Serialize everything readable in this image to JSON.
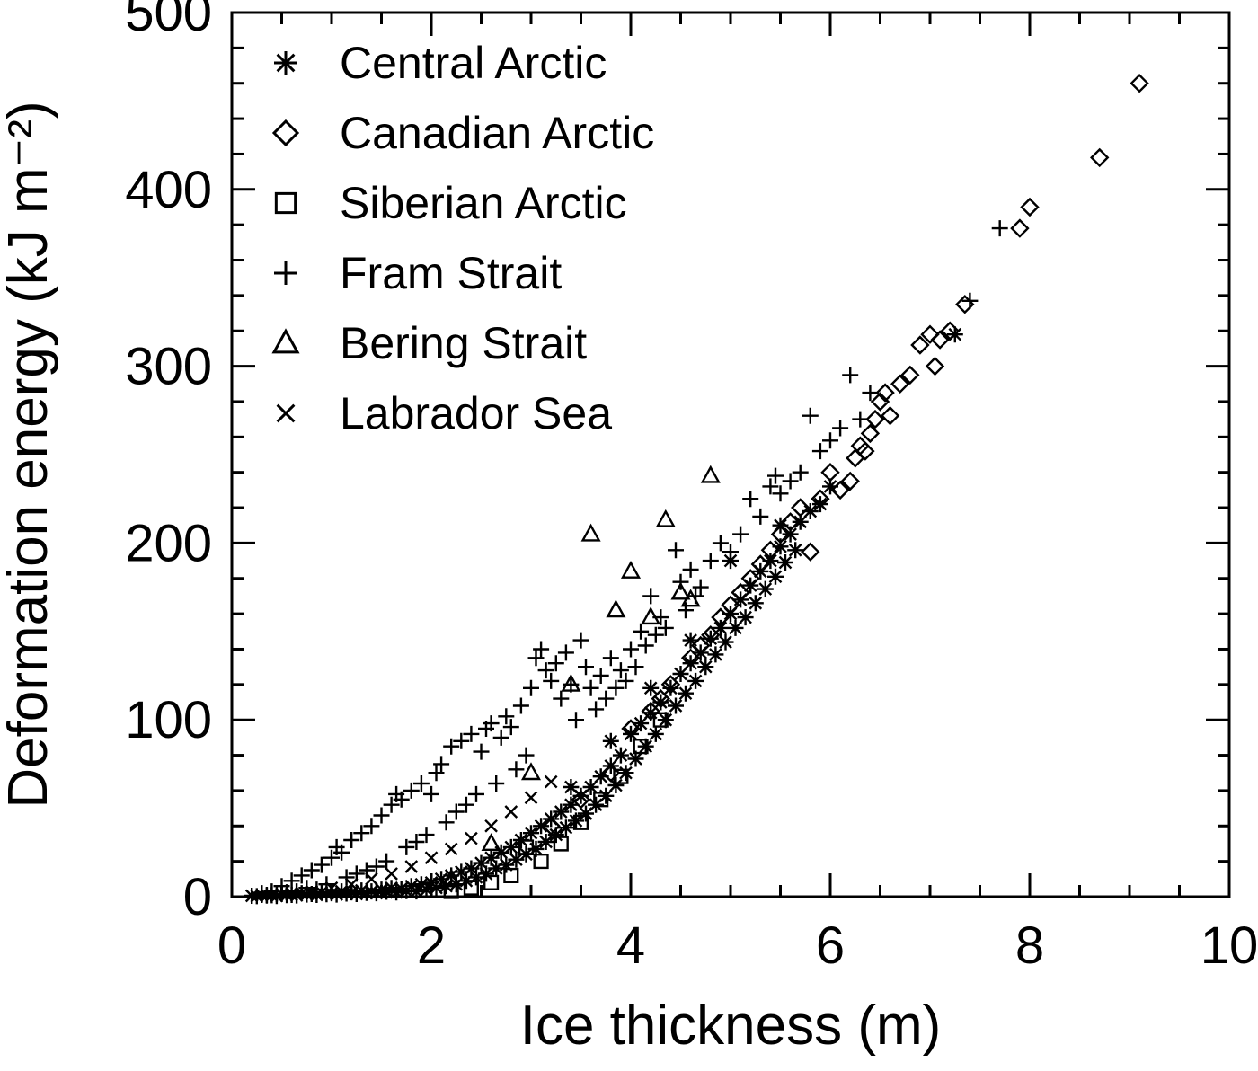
{
  "figure": {
    "background": "#ffffff",
    "foreground": "#000000"
  },
  "chart_data": {
    "type": "scatter",
    "title": "",
    "xlabel": "Ice thickness (m)",
    "ylabel": "Deformation energy (kJ m⁻²)",
    "xlim": [
      0,
      10
    ],
    "ylim": [
      0,
      500
    ],
    "x_ticks": [
      0,
      2,
      4,
      6,
      8,
      10
    ],
    "y_ticks": [
      0,
      100,
      200,
      300,
      400,
      500
    ],
    "x_minor_interval": 0.5,
    "y_minor_interval": 20,
    "grid": false,
    "legend_position": "top-left-inside",
    "series": [
      {
        "name": "Central Arctic",
        "marker": "asterisk",
        "color": "#000000",
        "points": [
          [
            0.2,
            0.5
          ],
          [
            0.25,
            0.3
          ],
          [
            0.3,
            1
          ],
          [
            0.35,
            0.6
          ],
          [
            0.4,
            0.8
          ],
          [
            0.45,
            0.4
          ],
          [
            0.5,
            1.5
          ],
          [
            0.55,
            0.9
          ],
          [
            0.6,
            1
          ],
          [
            0.65,
            0.7
          ],
          [
            0.7,
            2
          ],
          [
            0.75,
            1.2
          ],
          [
            0.8,
            1.5
          ],
          [
            0.85,
            1
          ],
          [
            0.9,
            2.5
          ],
          [
            0.95,
            1.4
          ],
          [
            1,
            2
          ],
          [
            1.05,
            1.2
          ],
          [
            1.1,
            3
          ],
          [
            1.15,
            1.8
          ],
          [
            1.2,
            2.5
          ],
          [
            1.25,
            1.5
          ],
          [
            1.3,
            3.5
          ],
          [
            1.35,
            2.2
          ],
          [
            1.4,
            3
          ],
          [
            1.45,
            2
          ],
          [
            1.5,
            4
          ],
          [
            1.55,
            2.8
          ],
          [
            1.6,
            5
          ],
          [
            1.65,
            2.4
          ],
          [
            1.7,
            4.5
          ],
          [
            1.75,
            3.2
          ],
          [
            1.8,
            6
          ],
          [
            1.85,
            3
          ],
          [
            1.9,
            7
          ],
          [
            1.95,
            4
          ],
          [
            2,
            8
          ],
          [
            2.05,
            5
          ],
          [
            2.1,
            10
          ],
          [
            2.15,
            6
          ],
          [
            2.2,
            12
          ],
          [
            2.25,
            7
          ],
          [
            2.3,
            14
          ],
          [
            2.35,
            9
          ],
          [
            2.4,
            16
          ],
          [
            2.45,
            11
          ],
          [
            2.5,
            19
          ],
          [
            2.55,
            13
          ],
          [
            2.6,
            22
          ],
          [
            2.65,
            16
          ],
          [
            2.7,
            25
          ],
          [
            2.75,
            18
          ],
          [
            2.8,
            28
          ],
          [
            2.85,
            21
          ],
          [
            2.9,
            32
          ],
          [
            2.95,
            24
          ],
          [
            3,
            36
          ],
          [
            3.05,
            27
          ],
          [
            3.1,
            40
          ],
          [
            3.15,
            31
          ],
          [
            3.2,
            44
          ],
          [
            3.25,
            35
          ],
          [
            3.3,
            48
          ],
          [
            3.35,
            39
          ],
          [
            3.4,
            52
          ],
          [
            3.45,
            43
          ],
          [
            3.5,
            57
          ],
          [
            3.55,
            47
          ],
          [
            3.6,
            62
          ],
          [
            3.65,
            52
          ],
          [
            3.7,
            68
          ],
          [
            3.75,
            57
          ],
          [
            3.8,
            74
          ],
          [
            3.85,
            63
          ],
          [
            3.9,
            80
          ],
          [
            3.95,
            70
          ],
          [
            4,
            92
          ],
          [
            4.05,
            78
          ],
          [
            4.1,
            98
          ],
          [
            4.15,
            85
          ],
          [
            4.2,
            104
          ],
          [
            4.25,
            92
          ],
          [
            4.3,
            110
          ],
          [
            4.35,
            100
          ],
          [
            4.4,
            118
          ],
          [
            4.45,
            108
          ],
          [
            4.5,
            126
          ],
          [
            4.55,
            115
          ],
          [
            4.6,
            132
          ],
          [
            4.65,
            122
          ],
          [
            4.7,
            138
          ],
          [
            4.75,
            130
          ],
          [
            4.8,
            146
          ],
          [
            4.85,
            137
          ],
          [
            4.9,
            152
          ],
          [
            4.95,
            144
          ],
          [
            5,
            160
          ],
          [
            5.05,
            152
          ],
          [
            5.1,
            168
          ],
          [
            5.15,
            158
          ],
          [
            5.2,
            176
          ],
          [
            5.25,
            166
          ],
          [
            5.3,
            184
          ],
          [
            5.35,
            174
          ],
          [
            5.4,
            190
          ],
          [
            5.45,
            181
          ],
          [
            5.5,
            198
          ],
          [
            5.55,
            189
          ],
          [
            5.6,
            205
          ],
          [
            5.65,
            196
          ],
          [
            5.7,
            212
          ],
          [
            5.8,
            218
          ],
          [
            5.9,
            222
          ],
          [
            6,
            232
          ],
          [
            5,
            190
          ],
          [
            4.6,
            145
          ],
          [
            4.2,
            118
          ],
          [
            3.8,
            88
          ],
          [
            3.4,
            62
          ],
          [
            5.5,
            210
          ],
          [
            7.25,
            318
          ]
        ]
      },
      {
        "name": "Canadian Arctic",
        "marker": "diamond",
        "color": "#000000",
        "points": [
          [
            3.2,
            40
          ],
          [
            3.5,
            55
          ],
          [
            3.8,
            70
          ],
          [
            4,
            95
          ],
          [
            4.2,
            105
          ],
          [
            4.3,
            112
          ],
          [
            4.4,
            120
          ],
          [
            4.6,
            135
          ],
          [
            4.7,
            142
          ],
          [
            4.8,
            148
          ],
          [
            4.9,
            158
          ],
          [
            5,
            165
          ],
          [
            5.1,
            172
          ],
          [
            5.2,
            180
          ],
          [
            5.3,
            188
          ],
          [
            5.4,
            196
          ],
          [
            5.5,
            205
          ],
          [
            5.6,
            212
          ],
          [
            5.7,
            220
          ],
          [
            5.8,
            195
          ],
          [
            5.9,
            225
          ],
          [
            6,
            240
          ],
          [
            6.1,
            230
          ],
          [
            6.2,
            235
          ],
          [
            6.25,
            248
          ],
          [
            6.3,
            255
          ],
          [
            6.35,
            252
          ],
          [
            6.4,
            262
          ],
          [
            6.45,
            270
          ],
          [
            6.5,
            280
          ],
          [
            6.55,
            285
          ],
          [
            6.6,
            272
          ],
          [
            6.7,
            290
          ],
          [
            6.8,
            295
          ],
          [
            6.9,
            312
          ],
          [
            7,
            318
          ],
          [
            7.05,
            300
          ],
          [
            7.1,
            315
          ],
          [
            7.2,
            320
          ],
          [
            7.35,
            335
          ],
          [
            7.9,
            378
          ],
          [
            8,
            390
          ],
          [
            8.7,
            418
          ],
          [
            9.1,
            460
          ]
        ]
      },
      {
        "name": "Siberian Arctic",
        "marker": "square",
        "color": "#000000",
        "points": [
          [
            2.2,
            3
          ],
          [
            2.4,
            5
          ],
          [
            2.6,
            8
          ],
          [
            2.8,
            12
          ],
          [
            2.95,
            28
          ],
          [
            3.1,
            20
          ],
          [
            3.3,
            30
          ],
          [
            3.5,
            42
          ],
          [
            3.7,
            55
          ],
          [
            3.9,
            68
          ],
          [
            4.1,
            85
          ],
          [
            4.3,
            100
          ]
        ]
      },
      {
        "name": "Fram Strait",
        "marker": "plus",
        "color": "#000000",
        "points": [
          [
            0.3,
            2
          ],
          [
            0.35,
            1
          ],
          [
            0.4,
            3
          ],
          [
            0.45,
            1.5
          ],
          [
            0.5,
            6
          ],
          [
            0.55,
            2.5
          ],
          [
            0.6,
            9
          ],
          [
            0.65,
            3
          ],
          [
            0.7,
            12
          ],
          [
            0.75,
            5
          ],
          [
            0.8,
            15
          ],
          [
            0.85,
            4
          ],
          [
            0.9,
            18
          ],
          [
            0.95,
            7
          ],
          [
            1,
            22
          ],
          [
            1.05,
            28
          ],
          [
            1.1,
            25
          ],
          [
            1.15,
            11
          ],
          [
            1.2,
            32
          ],
          [
            1.25,
            13
          ],
          [
            1.3,
            36
          ],
          [
            1.35,
            15
          ],
          [
            1.4,
            40
          ],
          [
            1.45,
            17
          ],
          [
            1.5,
            46
          ],
          [
            1.55,
            20
          ],
          [
            1.6,
            52
          ],
          [
            1.65,
            58
          ],
          [
            1.7,
            55
          ],
          [
            1.75,
            28
          ],
          [
            1.8,
            60
          ],
          [
            1.85,
            31
          ],
          [
            1.9,
            64
          ],
          [
            1.95,
            35
          ],
          [
            2,
            58
          ],
          [
            2.05,
            70
          ],
          [
            2.1,
            75
          ],
          [
            2.15,
            42
          ],
          [
            2.2,
            85
          ],
          [
            2.25,
            48
          ],
          [
            2.3,
            88
          ],
          [
            2.35,
            52
          ],
          [
            2.4,
            92
          ],
          [
            2.45,
            58
          ],
          [
            2.5,
            82
          ],
          [
            2.55,
            95
          ],
          [
            2.6,
            98
          ],
          [
            2.65,
            64
          ],
          [
            2.7,
            90
          ],
          [
            2.75,
            102
          ],
          [
            2.8,
            96
          ],
          [
            2.85,
            72
          ],
          [
            2.9,
            108
          ],
          [
            2.95,
            80
          ],
          [
            3,
            118
          ],
          [
            3.05,
            135
          ],
          [
            3.1,
            140
          ],
          [
            3.15,
            128
          ],
          [
            3.2,
            122
          ],
          [
            3.25,
            132
          ],
          [
            3.3,
            112
          ],
          [
            3.35,
            138
          ],
          [
            3.4,
            120
          ],
          [
            3.45,
            100
          ],
          [
            3.5,
            145
          ],
          [
            3.55,
            130
          ],
          [
            3.6,
            118
          ],
          [
            3.65,
            106
          ],
          [
            3.7,
            125
          ],
          [
            3.75,
            112
          ],
          [
            3.8,
            135
          ],
          [
            3.85,
            118
          ],
          [
            3.9,
            128
          ],
          [
            3.95,
            122
          ],
          [
            4,
            140
          ],
          [
            4.05,
            130
          ],
          [
            4.1,
            150
          ],
          [
            4.15,
            142
          ],
          [
            4.2,
            170
          ],
          [
            4.25,
            148
          ],
          [
            4.3,
            158
          ],
          [
            4.35,
            152
          ],
          [
            4.45,
            196
          ],
          [
            4.5,
            178
          ],
          [
            4.55,
            162
          ],
          [
            4.6,
            185
          ],
          [
            4.65,
            170
          ],
          [
            4.7,
            175
          ],
          [
            4.8,
            190
          ],
          [
            4.9,
            200
          ],
          [
            5,
            195
          ],
          [
            5.1,
            205
          ],
          [
            5.2,
            225
          ],
          [
            5.3,
            215
          ],
          [
            5.4,
            232
          ],
          [
            5.45,
            238
          ],
          [
            5.5,
            228
          ],
          [
            5.6,
            235
          ],
          [
            5.7,
            240
          ],
          [
            5.8,
            272
          ],
          [
            5.9,
            252
          ],
          [
            6,
            258
          ],
          [
            6.1,
            265
          ],
          [
            6.2,
            295
          ],
          [
            6.3,
            270
          ],
          [
            6.4,
            285
          ],
          [
            7.4,
            337
          ],
          [
            7.7,
            378
          ]
        ]
      },
      {
        "name": "Bering Strait",
        "marker": "triangle",
        "color": "#000000",
        "points": [
          [
            2.2,
            10
          ],
          [
            2.6,
            30
          ],
          [
            3,
            70
          ],
          [
            3.4,
            120
          ],
          [
            3.6,
            205
          ],
          [
            3.85,
            162
          ],
          [
            4,
            184
          ],
          [
            4.2,
            158
          ],
          [
            4.35,
            213
          ],
          [
            4.5,
            172
          ],
          [
            4.6,
            168
          ],
          [
            4.8,
            238
          ]
        ]
      },
      {
        "name": "Labrador Sea",
        "marker": "x",
        "color": "#000000",
        "points": [
          [
            0.4,
            1
          ],
          [
            0.6,
            2
          ],
          [
            0.8,
            3
          ],
          [
            1,
            5
          ],
          [
            1.2,
            7
          ],
          [
            1.4,
            10
          ],
          [
            1.6,
            13
          ],
          [
            1.8,
            17
          ],
          [
            2,
            22
          ],
          [
            2.2,
            27
          ],
          [
            2.4,
            33
          ],
          [
            2.6,
            40
          ],
          [
            2.8,
            48
          ],
          [
            3,
            56
          ],
          [
            3.2,
            65
          ]
        ]
      }
    ]
  }
}
